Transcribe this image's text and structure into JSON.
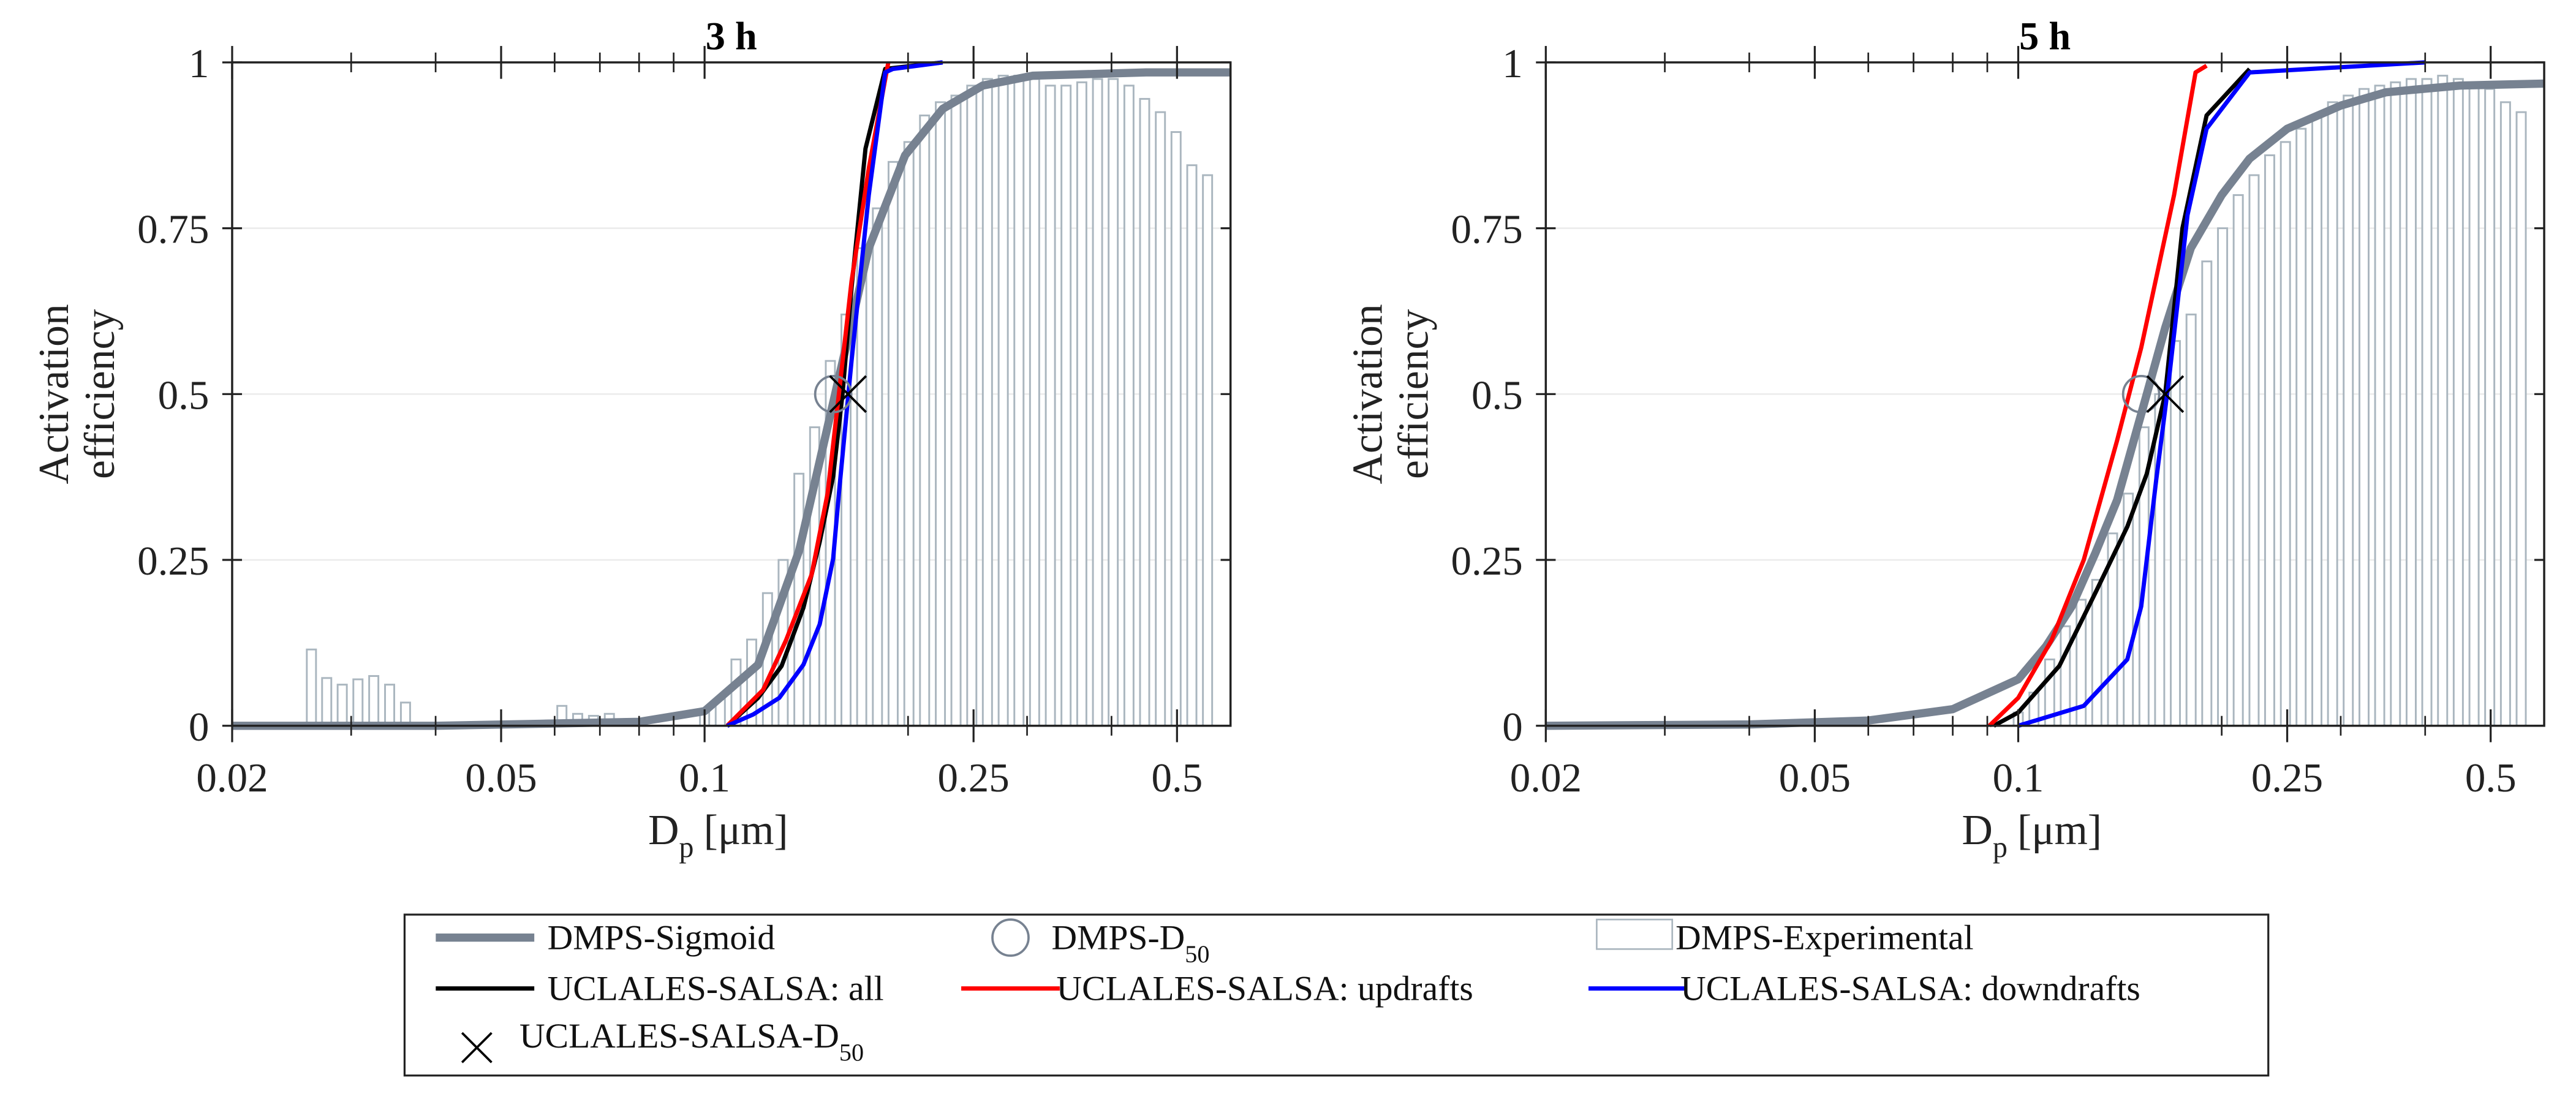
{
  "colors": {
    "sigmoid": "#778291",
    "experimental": "#aab6bf",
    "all": "#000000",
    "updrafts": "#ff0000",
    "downdrafts": "#0000ff",
    "grid": "#ececec",
    "axis": "#222222"
  },
  "legend": {
    "placement": "bottom-center",
    "items": [
      {
        "key": "sigmoid",
        "label": "DMPS-Sigmoid",
        "sub": "",
        "icon": "line"
      },
      {
        "key": "dmps_d50",
        "label": "DMPS-D",
        "sub": "50",
        "icon": "circle"
      },
      {
        "key": "experimental",
        "label": "DMPS-Experimental",
        "sub": "",
        "icon": "bar"
      },
      {
        "key": "all",
        "label": "UCLALES-SALSA: all",
        "sub": "",
        "icon": "line"
      },
      {
        "key": "updrafts",
        "label": "UCLALES-SALSA: updrafts",
        "sub": "",
        "icon": "line"
      },
      {
        "key": "downdrafts",
        "label": "UCLALES-SALSA: downdrafts",
        "sub": "",
        "icon": "line"
      },
      {
        "key": "model_d50",
        "label": "UCLALES-SALSA-D",
        "sub": "50",
        "icon": "x"
      }
    ]
  },
  "chart_data": [
    {
      "type": "line",
      "title": "3 h",
      "xlabel_main": "D",
      "xlabel_sub": "p",
      "xlabel_unit": "[μm]",
      "ylabel": [
        "Activation",
        "efficiency"
      ],
      "xscale": "log",
      "xlim": [
        0.02,
        0.6
      ],
      "ylim": [
        0,
        1
      ],
      "grid": "horizontal",
      "xticks": [
        0.02,
        0.05,
        0.1,
        0.25,
        0.5
      ],
      "xtick_labels": [
        "0.02",
        "0.05",
        "0.1",
        "0.25",
        "0.5"
      ],
      "yticks": [
        0,
        0.25,
        0.5,
        0.75,
        1
      ],
      "ytick_labels": [
        "0",
        "0.25",
        "0.5",
        "0.75",
        "1"
      ],
      "bars": {
        "name": "DMPS-Experimental",
        "x": [
          0.0262,
          0.0276,
          0.0291,
          0.0307,
          0.0324,
          0.0342,
          0.0361,
          0.0615,
          0.0649,
          0.0685,
          0.0723,
          0.1,
          0.1055,
          0.1113,
          0.1174,
          0.1239,
          0.1307,
          0.1379,
          0.1455,
          0.1535,
          0.1619,
          0.1708,
          0.1802,
          0.1901,
          0.2006,
          0.2116,
          0.2233,
          0.2355,
          0.2485,
          0.2621,
          0.2766,
          0.2918,
          0.3078,
          0.3248,
          0.3426,
          0.3615,
          0.3814,
          0.4023,
          0.4245,
          0.4478,
          0.4725,
          0.4984,
          0.5259,
          0.5548
        ],
        "y": [
          0.115,
          0.072,
          0.062,
          0.07,
          0.075,
          0.062,
          0.035,
          0.03,
          0.018,
          0.015,
          0.018,
          0.02,
          0.04,
          0.1,
          0.13,
          0.2,
          0.25,
          0.38,
          0.45,
          0.55,
          0.62,
          0.72,
          0.78,
          0.85,
          0.88,
          0.92,
          0.94,
          0.95,
          0.965,
          0.975,
          0.98,
          0.98,
          0.975,
          0.965,
          0.965,
          0.97,
          0.975,
          0.975,
          0.965,
          0.945,
          0.925,
          0.895,
          0.845,
          0.83
        ]
      },
      "series": [
        {
          "key": "sigmoid",
          "name": "DMPS-Sigmoid",
          "x": [
            0.02,
            0.04,
            0.057,
            0.08,
            0.1,
            0.12,
            0.138,
            0.156,
            0.175,
            0.198,
            0.225,
            0.258,
            0.306,
            0.45,
            0.6
          ],
          "y": [
            0,
            0,
            0.003,
            0.006,
            0.022,
            0.092,
            0.264,
            0.5,
            0.72,
            0.86,
            0.93,
            0.965,
            0.98,
            0.985,
            0.985
          ]
        },
        {
          "key": "all",
          "name": "UCLALES-SALSA: all",
          "x": [
            0.108,
            0.12,
            0.13,
            0.14,
            0.148,
            0.155,
            0.16,
            0.165,
            0.173,
            0.185,
            0.225
          ],
          "y": [
            0,
            0.042,
            0.09,
            0.178,
            0.277,
            0.376,
            0.5,
            0.66,
            0.87,
            0.99,
            1.0
          ]
        },
        {
          "key": "updrafts",
          "name": "UCLALES-SALSA: updrafts",
          "x": [
            0.108,
            0.122,
            0.132,
            0.144,
            0.152,
            0.158,
            0.165,
            0.175,
            0.187
          ],
          "y": [
            0,
            0.054,
            0.129,
            0.228,
            0.35,
            0.5,
            0.67,
            0.84,
            1.0
          ]
        },
        {
          "key": "downdrafts",
          "name": "UCLALES-SALSA: downdrafts",
          "x": [
            0.108,
            0.118,
            0.129,
            0.14,
            0.148,
            0.155,
            0.158,
            0.165,
            0.175,
            0.185,
            0.19,
            0.225
          ],
          "y": [
            0,
            0.017,
            0.042,
            0.092,
            0.153,
            0.252,
            0.35,
            0.55,
            0.8,
            0.985,
            0.99,
            1.0
          ]
        }
      ],
      "dmps_d50": {
        "x": 0.155,
        "y": 0.5
      },
      "model_d50": {
        "x": 0.163,
        "y": 0.5
      }
    },
    {
      "type": "line",
      "title": "5 h",
      "xlabel_main": "D",
      "xlabel_sub": "p",
      "xlabel_unit": "[μm]",
      "ylabel": [
        "Activation",
        "efficiency"
      ],
      "xscale": "log",
      "xlim": [
        0.02,
        0.6
      ],
      "ylim": [
        0,
        1
      ],
      "grid": "horizontal",
      "xticks": [
        0.02,
        0.05,
        0.1,
        0.25,
        0.5
      ],
      "xtick_labels": [
        "0.02",
        "0.05",
        "0.1",
        "0.25",
        "0.5"
      ],
      "yticks": [
        0,
        0.25,
        0.5,
        0.75,
        1
      ],
      "ytick_labels": [
        "0",
        "0.25",
        "0.5",
        "0.75",
        "1"
      ],
      "bars": {
        "name": "DMPS-Experimental",
        "x": [
          0.1,
          0.1055,
          0.1113,
          0.1174,
          0.1239,
          0.1307,
          0.1379,
          0.1455,
          0.1535,
          0.1619,
          0.1708,
          0.1802,
          0.1901,
          0.2006,
          0.2116,
          0.2233,
          0.2355,
          0.2485,
          0.2621,
          0.2766,
          0.2918,
          0.3078,
          0.3248,
          0.3426,
          0.3615,
          0.3814,
          0.4023,
          0.4245,
          0.4478,
          0.4725,
          0.4984,
          0.5259,
          0.5548
        ],
        "y": [
          0.02,
          0.05,
          0.1,
          0.15,
          0.19,
          0.22,
          0.29,
          0.35,
          0.45,
          0.5,
          0.58,
          0.62,
          0.7,
          0.75,
          0.8,
          0.83,
          0.86,
          0.88,
          0.9,
          0.92,
          0.94,
          0.95,
          0.96,
          0.965,
          0.97,
          0.975,
          0.975,
          0.98,
          0.975,
          0.965,
          0.96,
          0.94,
          0.925
        ]
      },
      "series": [
        {
          "key": "sigmoid",
          "name": "DMPS-Sigmoid",
          "x": [
            0.02,
            0.04,
            0.06,
            0.08,
            0.1,
            0.11,
            0.12,
            0.13,
            0.14,
            0.155,
            0.165,
            0.18,
            0.2,
            0.22,
            0.25,
            0.3,
            0.35,
            0.45,
            0.6
          ],
          "y": [
            0,
            0.002,
            0.008,
            0.025,
            0.07,
            0.12,
            0.18,
            0.26,
            0.34,
            0.5,
            0.6,
            0.72,
            0.8,
            0.855,
            0.9,
            0.935,
            0.955,
            0.965,
            0.968
          ]
        },
        {
          "key": "all",
          "name": "UCLALES-SALSA: all",
          "x": [
            0.092,
            0.1,
            0.115,
            0.13,
            0.145,
            0.155,
            0.165,
            0.175,
            0.19,
            0.22
          ],
          "y": [
            0,
            0.02,
            0.09,
            0.2,
            0.3,
            0.38,
            0.5,
            0.75,
            0.92,
            0.99
          ]
        },
        {
          "key": "updrafts",
          "name": "UCLALES-SALSA: updrafts",
          "x": [
            0.0906,
            0.1,
            0.112,
            0.125,
            0.14,
            0.152,
            0.17,
            0.183,
            0.19
          ],
          "y": [
            0,
            0.042,
            0.129,
            0.25,
            0.43,
            0.57,
            0.8,
            0.985,
            0.995
          ]
        },
        {
          "key": "downdrafts",
          "name": "UCLALES-SALSA: downdrafts",
          "x": [
            0.1,
            0.125,
            0.145,
            0.152,
            0.16,
            0.167,
            0.178,
            0.19,
            0.22,
            0.4
          ],
          "y": [
            0,
            0.03,
            0.1,
            0.18,
            0.37,
            0.52,
            0.77,
            0.9,
            0.985,
            1.0
          ]
        }
      ],
      "dmps_d50": {
        "x": 0.152,
        "y": 0.5
      },
      "model_d50": {
        "x": 0.165,
        "y": 0.5
      }
    }
  ]
}
